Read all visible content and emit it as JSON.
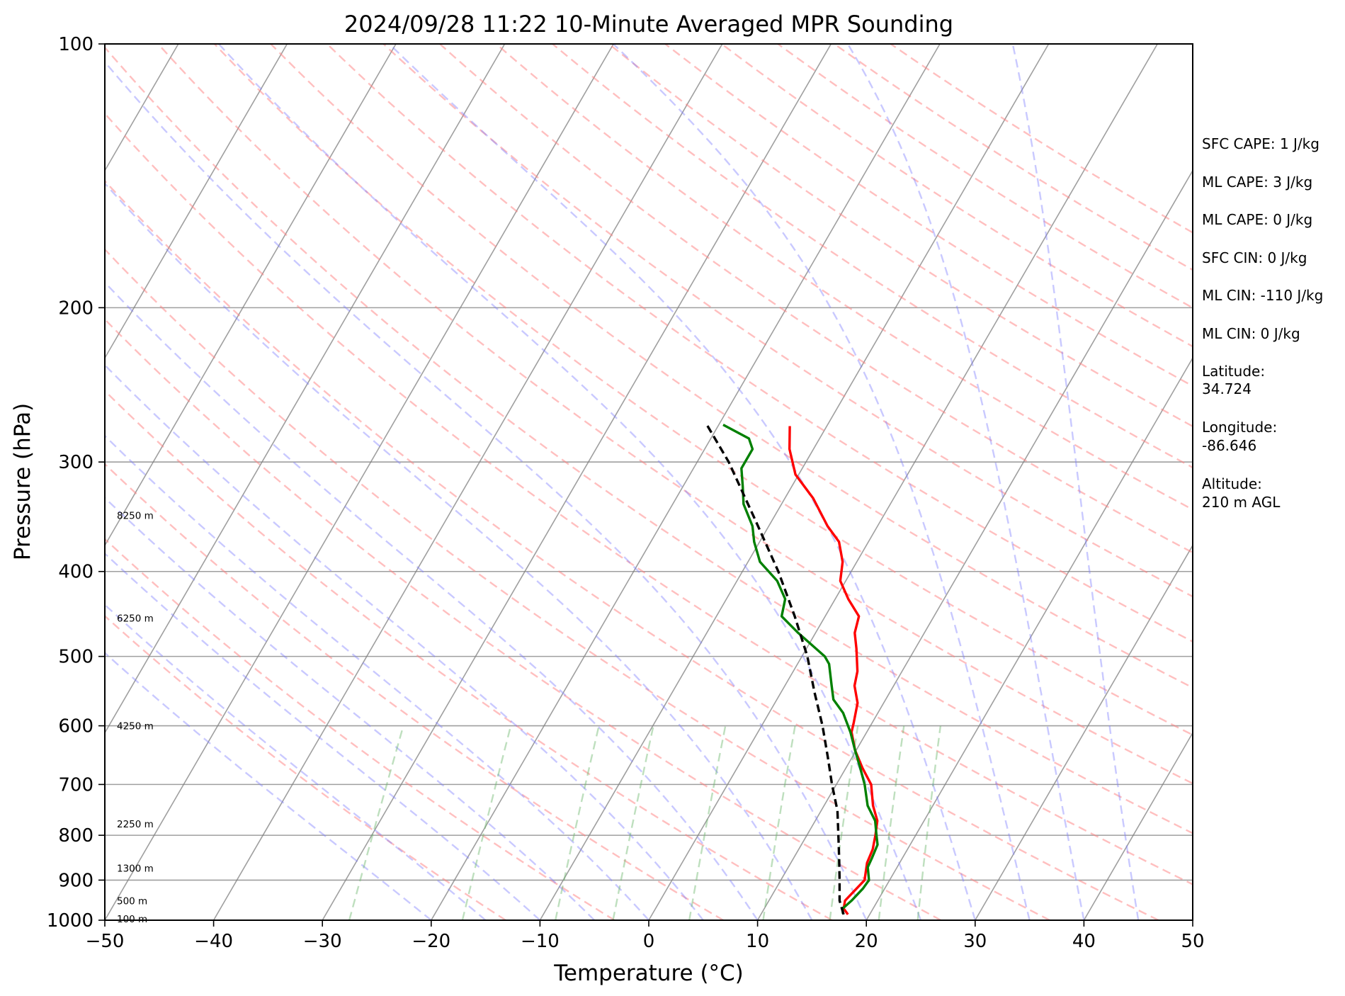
{
  "chart_data": {
    "type": "line",
    "title": "2024/09/28 11:22 10-Minute Averaged MPR Sounding",
    "xlabel": "Temperature (°C)",
    "ylabel": "Pressure (hPa)",
    "xlim": [
      -50,
      50
    ],
    "ylim": [
      1000,
      100
    ],
    "y_scale": "log",
    "grid": true,
    "x_ticks": [
      "−50",
      "−40",
      "−30",
      "−20",
      "−10",
      "0",
      "10",
      "20",
      "30",
      "40",
      "50"
    ],
    "y_ticks": [
      "100",
      "200",
      "300",
      "400",
      "500",
      "600",
      "700",
      "800",
      "900",
      "1000"
    ],
    "height_labels": [
      {
        "p": 996,
        "label": "100 m"
      },
      {
        "p": 950,
        "label": "500 m"
      },
      {
        "p": 872,
        "label": "1300 m"
      },
      {
        "p": 776,
        "label": "2250 m"
      },
      {
        "p": 600,
        "label": "4250 m"
      },
      {
        "p": 452,
        "label": "6250 m"
      },
      {
        "p": 345,
        "label": "8250 m"
      }
    ],
    "series": [
      {
        "kind": "temperature",
        "color": "#ff0000",
        "points": [
          {
            "p": 985,
            "t": 18.0
          },
          {
            "p": 970,
            "t": 17.3
          },
          {
            "p": 950,
            "t": 17.0
          },
          {
            "p": 900,
            "t": 17.7
          },
          {
            "p": 860,
            "t": 17.0
          },
          {
            "p": 830,
            "t": 16.8
          },
          {
            "p": 800,
            "t": 16.3
          },
          {
            "p": 770,
            "t": 15.7
          },
          {
            "p": 740,
            "t": 14.5
          },
          {
            "p": 700,
            "t": 13.2
          },
          {
            "p": 670,
            "t": 11.5
          },
          {
            "p": 640,
            "t": 9.9
          },
          {
            "p": 610,
            "t": 8.6
          },
          {
            "p": 595,
            "t": 8.3
          },
          {
            "p": 565,
            "t": 7.6
          },
          {
            "p": 540,
            "t": 6.4
          },
          {
            "p": 520,
            "t": 5.9
          },
          {
            "p": 490,
            "t": 4.6
          },
          {
            "p": 470,
            "t": 3.6
          },
          {
            "p": 450,
            "t": 3.1
          },
          {
            "p": 430,
            "t": 1.2
          },
          {
            "p": 410,
            "t": -0.5
          },
          {
            "p": 390,
            "t": -1.3
          },
          {
            "p": 370,
            "t": -2.7
          },
          {
            "p": 355,
            "t": -4.6
          },
          {
            "p": 330,
            "t": -7.4
          },
          {
            "p": 310,
            "t": -10.3
          },
          {
            "p": 290,
            "t": -12.2
          },
          {
            "p": 273,
            "t": -13.4
          }
        ]
      },
      {
        "kind": "dewpoint",
        "color": "#008000",
        "points": [
          {
            "p": 983,
            "t": 17.5
          },
          {
            "p": 970,
            "t": 17.2
          },
          {
            "p": 950,
            "t": 17.6
          },
          {
            "p": 920,
            "t": 18.0
          },
          {
            "p": 900,
            "t": 18.1
          },
          {
            "p": 870,
            "t": 17.3
          },
          {
            "p": 850,
            "t": 17.2
          },
          {
            "p": 820,
            "t": 17.0
          },
          {
            "p": 800,
            "t": 16.4
          },
          {
            "p": 770,
            "t": 15.5
          },
          {
            "p": 740,
            "t": 14.0
          },
          {
            "p": 700,
            "t": 12.6
          },
          {
            "p": 670,
            "t": 11.3
          },
          {
            "p": 640,
            "t": 9.9
          },
          {
            "p": 610,
            "t": 8.5
          },
          {
            "p": 580,
            "t": 6.8
          },
          {
            "p": 560,
            "t": 5.2
          },
          {
            "p": 540,
            "t": 4.3
          },
          {
            "p": 510,
            "t": 2.9
          },
          {
            "p": 500,
            "t": 2.1
          },
          {
            "p": 470,
            "t": -1.6
          },
          {
            "p": 450,
            "t": -4.0
          },
          {
            "p": 430,
            "t": -4.6
          },
          {
            "p": 410,
            "t": -6.3
          },
          {
            "p": 390,
            "t": -8.9
          },
          {
            "p": 370,
            "t": -10.5
          },
          {
            "p": 355,
            "t": -11.5
          },
          {
            "p": 335,
            "t": -13.5
          },
          {
            "p": 320,
            "t": -14.5
          },
          {
            "p": 305,
            "t": -15.6
          },
          {
            "p": 290,
            "t": -15.6
          },
          {
            "p": 282,
            "t": -16.5
          },
          {
            "p": 272,
            "t": -19.6
          }
        ]
      },
      {
        "kind": "parcel",
        "color": "#000000",
        "dashed": true,
        "points": [
          {
            "p": 985,
            "t": 17.6
          },
          {
            "p": 950,
            "t": 16.5
          },
          {
            "p": 900,
            "t": 15.4
          },
          {
            "p": 850,
            "t": 14.2
          },
          {
            "p": 800,
            "t": 12.9
          },
          {
            "p": 750,
            "t": 11.5
          },
          {
            "p": 700,
            "t": 9.6
          },
          {
            "p": 650,
            "t": 7.7
          },
          {
            "p": 600,
            "t": 5.6
          },
          {
            "p": 550,
            "t": 3.1
          },
          {
            "p": 500,
            "t": 0.5
          },
          {
            "p": 450,
            "t": -2.8
          },
          {
            "p": 400,
            "t": -6.7
          },
          {
            "p": 350,
            "t": -11.5
          },
          {
            "p": 300,
            "t": -17.1
          },
          {
            "p": 272,
            "t": -21.1
          }
        ]
      }
    ],
    "reference_lines": {
      "dry_adiabats_color": "#ff7f7f",
      "moist_adiabats_color": "#7f7fff",
      "mixing_ratio_color": "#6fb86f",
      "isotherms_color": "#7f7f7f"
    },
    "annotations": {
      "stats": [
        "SFC CAPE: 1 J/kg",
        "ML CAPE: 3 J/kg",
        "ML CAPE: 0 J/kg",
        "SFC CIN: 0 J/kg",
        "ML CIN: -110 J/kg",
        "ML CIN: 0 J/kg"
      ],
      "latitude_label": "Latitude:",
      "latitude": "34.724",
      "longitude_label": "Longitude:",
      "longitude": "-86.646",
      "altitude_label": "Altitude:",
      "altitude": "210 m AGL"
    }
  }
}
